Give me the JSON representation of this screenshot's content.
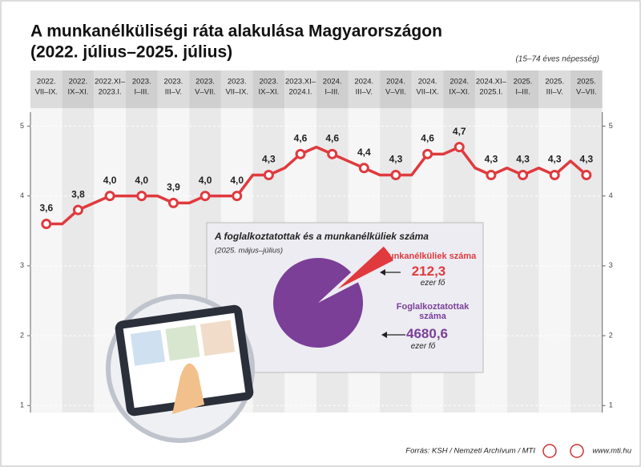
{
  "chart_data": {
    "type": "line",
    "title": "A munkanélküliségi ráta alakulása Magyarországon",
    "subtitle": "(2022. július–2025. július)",
    "note": "(15–74 éves népesség)",
    "categories": [
      [
        "2022.",
        "VII–IX."
      ],
      [
        "2022.",
        "IX–XI."
      ],
      [
        "2022.XI–",
        "2023.I."
      ],
      [
        "2023.",
        "I–III."
      ],
      [
        "2023.",
        "III–V."
      ],
      [
        "2023.",
        "V–VII."
      ],
      [
        "2023.",
        "VII–IX."
      ],
      [
        "2023.",
        "IX–XI."
      ],
      [
        "2023.XI–",
        "2024.I."
      ],
      [
        "2024.",
        "I–III."
      ],
      [
        "2024.",
        "III–V."
      ],
      [
        "2024.",
        "V–VII."
      ],
      [
        "2024.",
        "VII–IX."
      ],
      [
        "2024.",
        "IX–XI."
      ],
      [
        "2024.XI–",
        "2025.I."
      ],
      [
        "2025.",
        "I–III."
      ],
      [
        "2025.",
        "III–V."
      ],
      [
        "2025.",
        "V–VII."
      ]
    ],
    "values": [
      3.6,
      3.8,
      4.0,
      4.0,
      3.9,
      4.0,
      4.0,
      4.3,
      4.6,
      4.6,
      4.4,
      4.3,
      4.6,
      4.7,
      4.3,
      4.3,
      4.3,
      4.3
    ],
    "value_labels": [
      "3,6",
      "3,8",
      "4,0",
      "4,0",
      "3,9",
      "4,0",
      "4,0",
      "4,3",
      "4,6",
      "4,6",
      "4,4",
      "4,3",
      "4,6",
      "4,7",
      "4,3",
      "4,3",
      "4,3",
      "4,3"
    ],
    "line": {
      "x": [
        0,
        0.5,
        1,
        1.5,
        2,
        2.5,
        3,
        3.5,
        4,
        4.5,
        5,
        5.5,
        6,
        6.5,
        7,
        7.5,
        8,
        8.5,
        9,
        9.5,
        10,
        10.5,
        11,
        11.5,
        12,
        12.5,
        13,
        13.5,
        14,
        14.5,
        15,
        15.5,
        16,
        16.5,
        17
      ],
      "values": [
        3.6,
        3.6,
        3.8,
        3.9,
        4.0,
        4.0,
        4.0,
        4.0,
        3.9,
        3.9,
        4.0,
        4.0,
        4.0,
        4.3,
        4.3,
        4.4,
        4.6,
        4.7,
        4.6,
        4.5,
        4.4,
        4.3,
        4.3,
        4.3,
        4.6,
        4.6,
        4.7,
        4.4,
        4.3,
        4.4,
        4.3,
        4.4,
        4.3,
        4.5,
        4.3
      ]
    },
    "color": "#e03a3e",
    "ylim": [
      0.9,
      5.2
    ],
    "yticks": [
      1,
      2,
      3,
      4,
      5
    ],
    "grid": true,
    "inset": {
      "type": "pie",
      "title": "A foglalkoztatottak és a munkanélküliek száma",
      "subtitle": "(2025. május–július)",
      "unit": "ezer fő",
      "categories": [
        "Munkanélküliek száma",
        "Foglalkoztatottak száma"
      ],
      "values": [
        212.3,
        4680.6
      ],
      "value_labels": [
        "212,3",
        "4680,6"
      ],
      "colors": [
        "#e03a3e",
        "#7b3f98"
      ]
    },
    "source": "Forrás: KSH / Nemzeti Archívum / MTI",
    "website": "www.mti.hu"
  }
}
